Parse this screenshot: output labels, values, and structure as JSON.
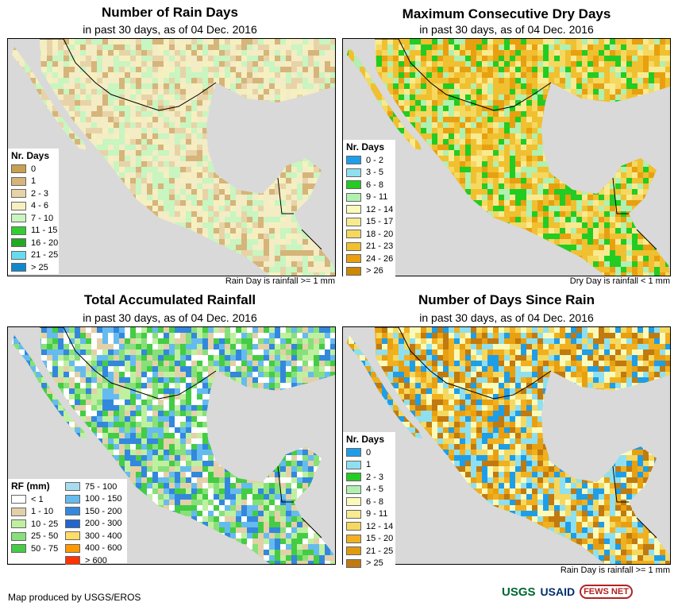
{
  "panels": [
    {
      "title": "Number of Rain Days",
      "subtitle": "in past 30 days, as of 04 Dec. 2016",
      "note": "Rain Day is rainfall >= 1 mm",
      "legend": {
        "title": "Nr. Days",
        "items": [
          {
            "label": "0",
            "color": "#c8a050"
          },
          {
            "label": "1",
            "color": "#d6b47a"
          },
          {
            "label": "2 - 3",
            "color": "#e8d3a8"
          },
          {
            "label": "4 - 6",
            "color": "#f6f0c0"
          },
          {
            "label": "7 - 10",
            "color": "#c8f5c0"
          },
          {
            "label": "11 - 15",
            "color": "#33cc33"
          },
          {
            "label": "16 - 20",
            "color": "#22aa22"
          },
          {
            "label": "21 - 25",
            "color": "#66ddee"
          },
          {
            "label": "> 25",
            "color": "#1188cc"
          }
        ]
      }
    },
    {
      "title": "Maximum Consecutive Dry Days",
      "subtitle": "in past 30 days, as of 04 Dec. 2016",
      "note": "Dry Day is rainfall < 1 mm",
      "legend": {
        "title": "Nr. Days",
        "items": [
          {
            "label": "0 - 2",
            "color": "#1e9ee8"
          },
          {
            "label": "3 - 5",
            "color": "#8ee0f0"
          },
          {
            "label": "6 - 8",
            "color": "#22cc22"
          },
          {
            "label": "9 - 11",
            "color": "#b0f0b0"
          },
          {
            "label": "12 - 14",
            "color": "#fafabb"
          },
          {
            "label": "15 - 17",
            "color": "#f8ea90"
          },
          {
            "label": "18 - 20",
            "color": "#f5d860"
          },
          {
            "label": "21 - 23",
            "color": "#f0c030"
          },
          {
            "label": "24 - 26",
            "color": "#e8a010"
          },
          {
            "label": "> 26",
            "color": "#cc8800"
          }
        ]
      }
    },
    {
      "title": "Total Accumulated Rainfall",
      "subtitle": "in past 30 days, as of 04 Dec. 2016",
      "note": "",
      "legend": {
        "title": "RF (mm)",
        "items": [
          {
            "label": "< 1",
            "color": "#ffffff"
          },
          {
            "label": "1 - 10",
            "color": "#e4d0a8"
          },
          {
            "label": "10 - 25",
            "color": "#bff0a0"
          },
          {
            "label": "25 - 50",
            "color": "#88e07a"
          },
          {
            "label": "50 - 75",
            "color": "#44cc44"
          }
        ],
        "items2": [
          {
            "label": "75 - 100",
            "color": "#aadcf0"
          },
          {
            "label": "100 - 150",
            "color": "#66bbee"
          },
          {
            "label": "150 - 200",
            "color": "#3388dd"
          },
          {
            "label": "200 - 300",
            "color": "#2266cc"
          },
          {
            "label": "300 - 400",
            "color": "#ffdd66"
          },
          {
            "label": "400 - 600",
            "color": "#ff9900"
          },
          {
            "label": "> 600",
            "color": "#ff3300"
          }
        ]
      }
    },
    {
      "title": "Number of Days Since Rain",
      "subtitle": "in past 30 days, as of 04 Dec. 2016",
      "note": "Rain Day is rainfall >= 1 mm",
      "legend": {
        "title": "Nr. Days",
        "items": [
          {
            "label": "0",
            "color": "#1e9ee8"
          },
          {
            "label": "1",
            "color": "#8ee0f0"
          },
          {
            "label": "2 - 3",
            "color": "#22cc22"
          },
          {
            "label": "4 - 5",
            "color": "#b0f0b0"
          },
          {
            "label": "6 - 8",
            "color": "#fafabb"
          },
          {
            "label": "9 - 11",
            "color": "#f8ea90"
          },
          {
            "label": "12 - 14",
            "color": "#f5d860"
          },
          {
            "label": "15 - 20",
            "color": "#f0b020"
          },
          {
            "label": "21 - 25",
            "color": "#e09a10"
          },
          {
            "label": "> 25",
            "color": "#c07a10"
          }
        ]
      }
    }
  ],
  "footer": "Map produced by USGS/EROS",
  "logos": [
    "USGS",
    "USAID",
    "FEWS NET"
  ],
  "colors": {
    "ocean": "#d9d9d9",
    "usgs": "#006633",
    "usaid": "#002f6c",
    "fews": "#b22222"
  }
}
